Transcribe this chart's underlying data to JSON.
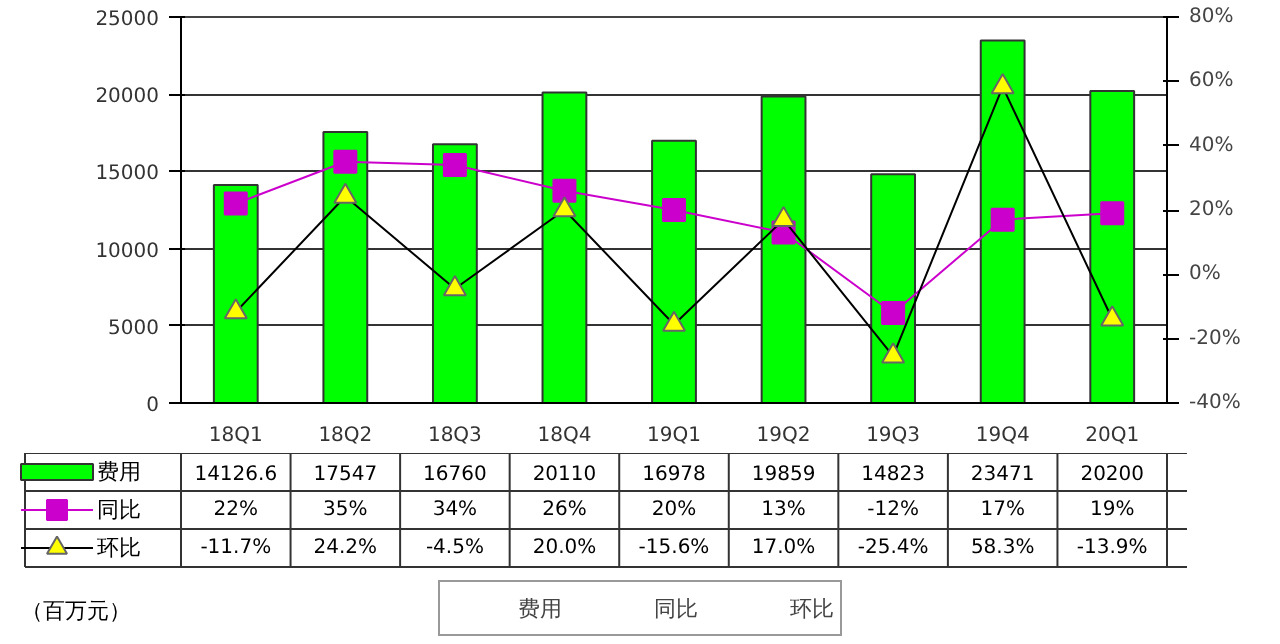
{
  "chart_data": {
    "type": "bar",
    "categories": [
      "18Q1",
      "18Q2",
      "18Q3",
      "18Q4",
      "19Q1",
      "19Q2",
      "19Q3",
      "19Q4",
      "20Q1"
    ],
    "series": [
      {
        "name": "费用",
        "color": "#00ff00",
        "values": [
          14126.6,
          17547,
          16760,
          20110,
          16978,
          19859,
          14823,
          23471,
          20200
        ],
        "value_labels": [
          "14126.6",
          "17547",
          "16760",
          "20110",
          "16978",
          "19859",
          "14823",
          "23471",
          "20200"
        ]
      },
      {
        "name": "同比",
        "type": "line",
        "axis": "y2",
        "marker": "square",
        "color": "#cc00cc",
        "values": [
          22,
          35,
          34,
          26,
          20,
          13,
          -12,
          17,
          19
        ],
        "value_labels": [
          "22%",
          "35%",
          "34%",
          "26%",
          "20%",
          "13%",
          "-12%",
          "17%",
          "19%"
        ]
      },
      {
        "name": "环比",
        "type": "line",
        "axis": "y2",
        "marker": "triangle",
        "color": "#000000",
        "values": [
          -11.7,
          24.2,
          -4.5,
          20.0,
          -15.6,
          17.0,
          -25.4,
          58.3,
          -13.9
        ],
        "value_labels": [
          "-11.7%",
          "24.2%",
          "-4.5%",
          "20.0%",
          "-15.6%",
          "17.0%",
          "-25.4%",
          "58.3%",
          "-13.9%"
        ]
      }
    ],
    "ylim": [
      0,
      25000
    ],
    "yticks": [
      0,
      5000,
      10000,
      15000,
      20000,
      25000
    ],
    "y2lim": [
      -40,
      80
    ],
    "y2ticks": [
      {
        "value": -40,
        "label": "-40%"
      },
      {
        "value": -20,
        "label": "-20%"
      },
      {
        "value": 0,
        "label": "0%"
      },
      {
        "value": 20,
        "label": "20%"
      },
      {
        "value": 40,
        "label": "40%"
      },
      {
        "value": 60,
        "label": "60%"
      },
      {
        "value": 80,
        "label": "80%"
      }
    ],
    "grid": "y",
    "legend": "bottom",
    "annotations": [
      "（百万元）"
    ]
  }
}
